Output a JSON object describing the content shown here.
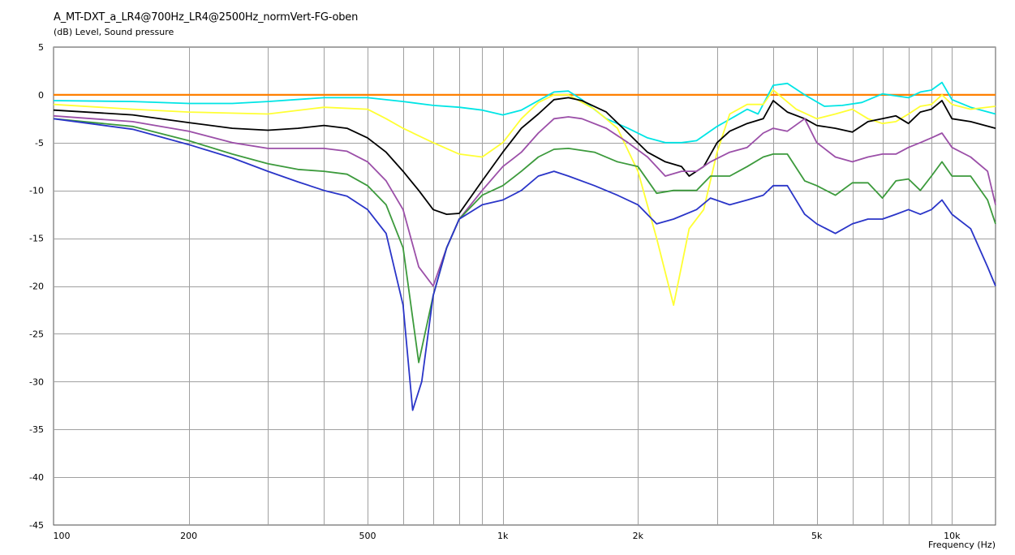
{
  "title": "A_MT-DXT_a_LR4@700Hz_LR4@2500Hz_normVert-FG-oben",
  "subtitle": "(dB)  Level, Sound pressure",
  "xlabel_text": "Frequency  (Hz)",
  "chart_data": {
    "type": "line",
    "title": "A_MT-DXT_a_LR4@700Hz_LR4@2500Hz_normVert-FG-oben",
    "ylabel": "(dB)  Level, Sound pressure",
    "xlabel": "Frequency  (Hz)",
    "xscale": "log",
    "xlim": [
      100,
      12500
    ],
    "ylim": [
      -45,
      5
    ],
    "grid": true,
    "y_ticks": [
      5,
      0,
      -5,
      -10,
      -15,
      -20,
      -25,
      -30,
      -35,
      -40,
      -45
    ],
    "x_tick_labels": [
      {
        "value": 100,
        "label": "100"
      },
      {
        "value": 200,
        "label": "200"
      },
      {
        "value": 500,
        "label": "500"
      },
      {
        "value": 1000,
        "label": "1k"
      },
      {
        "value": 2000,
        "label": "2k"
      },
      {
        "value": 5000,
        "label": "5k"
      },
      {
        "value": 10000,
        "label": "10k"
      }
    ],
    "series": [
      {
        "color": "#ff8000",
        "points": [
          [
            100,
            0
          ],
          [
            12500,
            0
          ]
        ]
      },
      {
        "color": "#00e5e5",
        "points": [
          [
            100,
            -0.6
          ],
          [
            150,
            -0.7
          ],
          [
            200,
            -0.9
          ],
          [
            250,
            -0.9
          ],
          [
            300,
            -0.7
          ],
          [
            400,
            -0.3
          ],
          [
            500,
            -0.3
          ],
          [
            600,
            -0.7
          ],
          [
            700,
            -1.1
          ],
          [
            800,
            -1.3
          ],
          [
            900,
            -1.6
          ],
          [
            1000,
            -2.1
          ],
          [
            1100,
            -1.6
          ],
          [
            1200,
            -0.6
          ],
          [
            1300,
            0.3
          ],
          [
            1400,
            0.4
          ],
          [
            1500,
            -0.5
          ],
          [
            1700,
            -2.5
          ],
          [
            1900,
            -3.5
          ],
          [
            2100,
            -4.5
          ],
          [
            2300,
            -5
          ],
          [
            2500,
            -5
          ],
          [
            2700,
            -4.8
          ],
          [
            3000,
            -3.3
          ],
          [
            3300,
            -2.2
          ],
          [
            3500,
            -1.5
          ],
          [
            3700,
            -2
          ],
          [
            4000,
            1
          ],
          [
            4300,
            1.2
          ],
          [
            4700,
            0
          ],
          [
            5200,
            -1.2
          ],
          [
            5700,
            -1.1
          ],
          [
            6300,
            -0.8
          ],
          [
            7000,
            0.1
          ],
          [
            7500,
            -0.1
          ],
          [
            8000,
            -0.3
          ],
          [
            8500,
            0.3
          ],
          [
            9000,
            0.5
          ],
          [
            9500,
            1.3
          ],
          [
            10000,
            -0.5
          ],
          [
            11000,
            -1.3
          ],
          [
            12500,
            -2
          ]
        ]
      },
      {
        "color": "#ffff33",
        "points": [
          [
            100,
            -1
          ],
          [
            150,
            -1.5
          ],
          [
            200,
            -1.8
          ],
          [
            300,
            -2
          ],
          [
            400,
            -1.3
          ],
          [
            500,
            -1.5
          ],
          [
            550,
            -2.5
          ],
          [
            600,
            -3.5
          ],
          [
            700,
            -5
          ],
          [
            800,
            -6.2
          ],
          [
            900,
            -6.5
          ],
          [
            1000,
            -5
          ],
          [
            1100,
            -2.5
          ],
          [
            1200,
            -0.8
          ],
          [
            1300,
            0
          ],
          [
            1400,
            0
          ],
          [
            1600,
            -1.5
          ],
          [
            1800,
            -3.5
          ],
          [
            2000,
            -8
          ],
          [
            2200,
            -15
          ],
          [
            2400,
            -22
          ],
          [
            2600,
            -14
          ],
          [
            2800,
            -12
          ],
          [
            3000,
            -6
          ],
          [
            3200,
            -2
          ],
          [
            3500,
            -1
          ],
          [
            3800,
            -1
          ],
          [
            4000,
            0.5
          ],
          [
            4500,
            -1.5
          ],
          [
            5000,
            -2.5
          ],
          [
            5500,
            -2
          ],
          [
            6000,
            -1.5
          ],
          [
            6500,
            -2.5
          ],
          [
            7000,
            -3
          ],
          [
            7500,
            -2.8
          ],
          [
            8000,
            -2
          ],
          [
            8500,
            -1.2
          ],
          [
            9000,
            -1
          ],
          [
            9500,
            0
          ],
          [
            10000,
            -1
          ],
          [
            11000,
            -1.5
          ],
          [
            12500,
            -1.2
          ]
        ]
      },
      {
        "color": "#000000",
        "points": [
          [
            100,
            -1.6
          ],
          [
            150,
            -2.1
          ],
          [
            200,
            -2.9
          ],
          [
            250,
            -3.5
          ],
          [
            300,
            -3.7
          ],
          [
            350,
            -3.5
          ],
          [
            400,
            -3.2
          ],
          [
            450,
            -3.5
          ],
          [
            500,
            -4.5
          ],
          [
            550,
            -6
          ],
          [
            600,
            -8
          ],
          [
            650,
            -10
          ],
          [
            700,
            -12
          ],
          [
            750,
            -12.5
          ],
          [
            800,
            -12.4
          ],
          [
            900,
            -9
          ],
          [
            1000,
            -6
          ],
          [
            1100,
            -3.5
          ],
          [
            1200,
            -2
          ],
          [
            1300,
            -0.5
          ],
          [
            1400,
            -0.3
          ],
          [
            1500,
            -0.6
          ],
          [
            1700,
            -1.8
          ],
          [
            1900,
            -4
          ],
          [
            2100,
            -6
          ],
          [
            2300,
            -7
          ],
          [
            2500,
            -7.5
          ],
          [
            2600,
            -8.5
          ],
          [
            2800,
            -7.5
          ],
          [
            3000,
            -5
          ],
          [
            3200,
            -3.8
          ],
          [
            3500,
            -3
          ],
          [
            3800,
            -2.5
          ],
          [
            4000,
            -0.6
          ],
          [
            4300,
            -1.8
          ],
          [
            4700,
            -2.5
          ],
          [
            5000,
            -3.2
          ],
          [
            5500,
            -3.5
          ],
          [
            6000,
            -3.9
          ],
          [
            6500,
            -2.8
          ],
          [
            7000,
            -2.5
          ],
          [
            7500,
            -2.2
          ],
          [
            8000,
            -3
          ],
          [
            8500,
            -1.8
          ],
          [
            9000,
            -1.5
          ],
          [
            9500,
            -0.6
          ],
          [
            10000,
            -2.5
          ],
          [
            11000,
            -2.8
          ],
          [
            12500,
            -3.5
          ]
        ]
      },
      {
        "color": "#9b4fa8",
        "points": [
          [
            100,
            -2.2
          ],
          [
            150,
            -2.8
          ],
          [
            200,
            -3.8
          ],
          [
            250,
            -5
          ],
          [
            300,
            -5.6
          ],
          [
            350,
            -5.6
          ],
          [
            400,
            -5.6
          ],
          [
            450,
            -5.9
          ],
          [
            500,
            -7
          ],
          [
            550,
            -9
          ],
          [
            600,
            -12
          ],
          [
            650,
            -18
          ],
          [
            700,
            -20
          ],
          [
            750,
            -16
          ],
          [
            800,
            -13
          ],
          [
            900,
            -10
          ],
          [
            1000,
            -7.5
          ],
          [
            1100,
            -6
          ],
          [
            1200,
            -4
          ],
          [
            1300,
            -2.5
          ],
          [
            1400,
            -2.3
          ],
          [
            1500,
            -2.5
          ],
          [
            1700,
            -3.5
          ],
          [
            1900,
            -5
          ],
          [
            2100,
            -6.5
          ],
          [
            2300,
            -8.5
          ],
          [
            2500,
            -8
          ],
          [
            2700,
            -8
          ],
          [
            2900,
            -7
          ],
          [
            3200,
            -6
          ],
          [
            3500,
            -5.5
          ],
          [
            3800,
            -4
          ],
          [
            4000,
            -3.5
          ],
          [
            4300,
            -3.8
          ],
          [
            4700,
            -2.5
          ],
          [
            5000,
            -5
          ],
          [
            5500,
            -6.5
          ],
          [
            6000,
            -7
          ],
          [
            6500,
            -6.5
          ],
          [
            7000,
            -6.2
          ],
          [
            7500,
            -6.2
          ],
          [
            8000,
            -5.5
          ],
          [
            8500,
            -5
          ],
          [
            9000,
            -4.5
          ],
          [
            9500,
            -4
          ],
          [
            10000,
            -5.5
          ],
          [
            11000,
            -6.5
          ],
          [
            12000,
            -8
          ],
          [
            12500,
            -11.5
          ]
        ]
      },
      {
        "color": "#3c9a3c",
        "points": [
          [
            100,
            -2.5
          ],
          [
            150,
            -3.3
          ],
          [
            200,
            -4.8
          ],
          [
            250,
            -6.2
          ],
          [
            300,
            -7.2
          ],
          [
            350,
            -7.8
          ],
          [
            400,
            -8
          ],
          [
            450,
            -8.3
          ],
          [
            500,
            -9.5
          ],
          [
            550,
            -11.5
          ],
          [
            600,
            -16
          ],
          [
            650,
            -28
          ],
          [
            700,
            -21
          ],
          [
            750,
            -16
          ],
          [
            800,
            -13
          ],
          [
            900,
            -10.5
          ],
          [
            1000,
            -9.5
          ],
          [
            1100,
            -8
          ],
          [
            1200,
            -6.5
          ],
          [
            1300,
            -5.7
          ],
          [
            1400,
            -5.6
          ],
          [
            1600,
            -6
          ],
          [
            1800,
            -7
          ],
          [
            2000,
            -7.5
          ],
          [
            2200,
            -10.3
          ],
          [
            2400,
            -10
          ],
          [
            2700,
            -10
          ],
          [
            2900,
            -8.5
          ],
          [
            3200,
            -8.5
          ],
          [
            3500,
            -7.5
          ],
          [
            3800,
            -6.5
          ],
          [
            4000,
            -6.2
          ],
          [
            4300,
            -6.2
          ],
          [
            4700,
            -9
          ],
          [
            5000,
            -9.5
          ],
          [
            5500,
            -10.5
          ],
          [
            6000,
            -9.2
          ],
          [
            6500,
            -9.2
          ],
          [
            7000,
            -10.8
          ],
          [
            7500,
            -9
          ],
          [
            8000,
            -8.8
          ],
          [
            8500,
            -10
          ],
          [
            9000,
            -8.5
          ],
          [
            9500,
            -7
          ],
          [
            10000,
            -8.5
          ],
          [
            11000,
            -8.5
          ],
          [
            12000,
            -11
          ],
          [
            12500,
            -13.5
          ]
        ]
      },
      {
        "color": "#2a35c8",
        "points": [
          [
            100,
            -2.5
          ],
          [
            150,
            -3.6
          ],
          [
            200,
            -5.2
          ],
          [
            250,
            -6.6
          ],
          [
            300,
            -8
          ],
          [
            350,
            -9.1
          ],
          [
            400,
            -10
          ],
          [
            450,
            -10.6
          ],
          [
            500,
            -12
          ],
          [
            550,
            -14.5
          ],
          [
            600,
            -22
          ],
          [
            630,
            -33
          ],
          [
            660,
            -30
          ],
          [
            700,
            -21
          ],
          [
            750,
            -16
          ],
          [
            800,
            -13
          ],
          [
            900,
            -11.5
          ],
          [
            1000,
            -11
          ],
          [
            1100,
            -10
          ],
          [
            1200,
            -8.5
          ],
          [
            1300,
            -8
          ],
          [
            1400,
            -8.5
          ],
          [
            1600,
            -9.5
          ],
          [
            1800,
            -10.5
          ],
          [
            2000,
            -11.5
          ],
          [
            2200,
            -13.5
          ],
          [
            2400,
            -13
          ],
          [
            2700,
            -12
          ],
          [
            2900,
            -10.8
          ],
          [
            3200,
            -11.5
          ],
          [
            3500,
            -11
          ],
          [
            3800,
            -10.5
          ],
          [
            4000,
            -9.5
          ],
          [
            4300,
            -9.5
          ],
          [
            4700,
            -12.5
          ],
          [
            5000,
            -13.5
          ],
          [
            5500,
            -14.5
          ],
          [
            6000,
            -13.5
          ],
          [
            6500,
            -13
          ],
          [
            7000,
            -13
          ],
          [
            7500,
            -12.5
          ],
          [
            8000,
            -12
          ],
          [
            8500,
            -12.5
          ],
          [
            9000,
            -12
          ],
          [
            9500,
            -11
          ],
          [
            10000,
            -12.5
          ],
          [
            11000,
            -14
          ],
          [
            12000,
            -18
          ],
          [
            12500,
            -20
          ]
        ]
      }
    ]
  }
}
